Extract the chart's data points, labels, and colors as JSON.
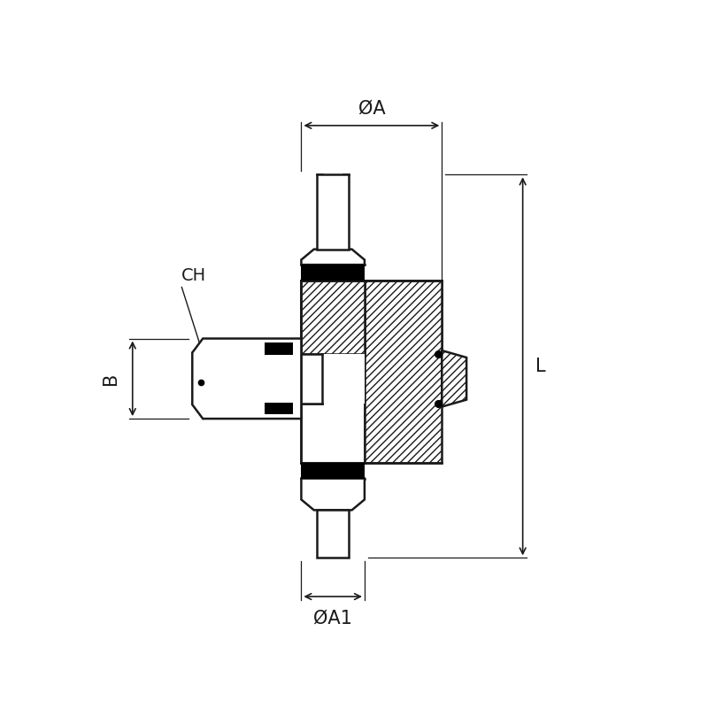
{
  "bg_color": "#ffffff",
  "line_color": "#1a1a1a",
  "dim_color": "#1a1a1a",
  "labels": {
    "OA": "ØA",
    "OA1": "ØA1",
    "B": "B",
    "L": "L",
    "CH": "CH"
  },
  "canvas_xlim": [
    0,
    10
  ],
  "canvas_ylim": [
    0,
    10
  ],
  "figsize": [
    8.0,
    8.0
  ],
  "dpi": 100
}
